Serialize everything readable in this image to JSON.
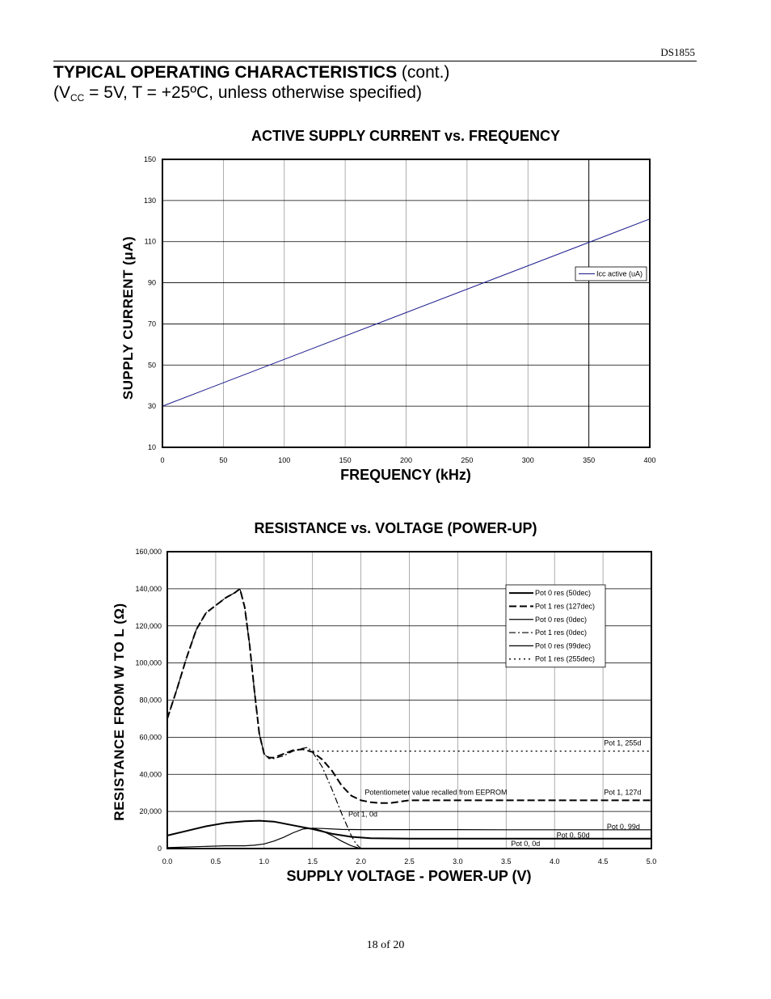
{
  "doc_id": "DS1855",
  "header": {
    "title_bold": "TYPICAL OPERATING CHARACTERISTICS",
    "title_suffix": " (cont.)",
    "condition_prefix": "(V",
    "condition_sub": "CC",
    "condition_suffix": " = 5V, T = +25ºC, unless otherwise specified)"
  },
  "footer": {
    "page": "18 of 20"
  },
  "chart_data": [
    {
      "type": "line",
      "title": "ACTIVE SUPPLY CURRENT vs. FREQUENCY",
      "xlabel": "FREQUENCY (kHz)",
      "ylabel_prefix": "SUPPLY CURRENT (",
      "ylabel_unit": "μA",
      "ylabel_suffix": ")",
      "xlim": [
        0,
        400
      ],
      "ylim": [
        10,
        150
      ],
      "xticks": [
        "0",
        "50",
        "100",
        "150",
        "200",
        "250",
        "300",
        "350",
        "400"
      ],
      "yticks": [
        "10",
        "30",
        "50",
        "70",
        "90",
        "110",
        "130",
        "150"
      ],
      "grid": true,
      "legend_position": "right",
      "series": [
        {
          "name": "Icc active (uA)",
          "color": "#1a1a8c",
          "style": "solid",
          "x": [
            0,
            400
          ],
          "y": [
            30,
            121
          ]
        }
      ]
    },
    {
      "type": "line",
      "title": "RESISTANCE vs. VOLTAGE (POWER-UP)",
      "xlabel": "SUPPLY VOLTAGE -  POWER-UP (V)",
      "ylabel_prefix": "RESISTANCE FROM W TO L (",
      "ylabel_unit": "Ω",
      "ylabel_suffix": ")",
      "xlim": [
        0,
        5
      ],
      "ylim": [
        0,
        160000
      ],
      "xticks": [
        "0.0",
        "0.5",
        "1.0",
        "1.5",
        "2.0",
        "2.5",
        "3.0",
        "3.5",
        "4.0",
        "4.5",
        "5.0"
      ],
      "yticks": [
        "0",
        "20,000",
        "40,000",
        "60,000",
        "80,000",
        "100,000",
        "120,000",
        "140,000",
        "160,000"
      ],
      "grid": true,
      "legend_position": "top-right",
      "series": [
        {
          "name": "Pot 0 res (50dec)",
          "style": "solid",
          "width": 2,
          "x": [
            0,
            0.2,
            0.4,
            0.6,
            0.8,
            0.95,
            1.1,
            1.3,
            1.5,
            1.7,
            1.9,
            2.1,
            2.5,
            3,
            3.5,
            4,
            4.5,
            5
          ],
          "y": [
            7000,
            9500,
            12000,
            13800,
            14700,
            15000,
            14500,
            12500,
            10500,
            8000,
            6300,
            5600,
            5300,
            5300,
            5300,
            5300,
            5300,
            5300
          ]
        },
        {
          "name": "Pot 1 res (127dec)",
          "style": "dash",
          "width": 2,
          "x": [
            0,
            0.1,
            0.2,
            0.3,
            0.4,
            0.5,
            0.6,
            0.7,
            0.75,
            0.8,
            0.85,
            0.9,
            0.95,
            1.0,
            1.05,
            1.1,
            1.2,
            1.3,
            1.4,
            1.5,
            1.6,
            1.7,
            1.8,
            1.9,
            2.0,
            2.1,
            2.2,
            2.3,
            2.5,
            3,
            3.5,
            4,
            4.5,
            5
          ],
          "y": [
            70000,
            86000,
            103000,
            118000,
            127000,
            131000,
            135000,
            138000,
            140000,
            130000,
            110000,
            85000,
            62000,
            51000,
            49000,
            49000,
            51000,
            53000,
            53500,
            52000,
            48000,
            42000,
            34000,
            28500,
            26000,
            25000,
            24500,
            24500,
            26000,
            26000,
            26000,
            26000,
            26000,
            26000
          ]
        },
        {
          "name": "Pot 0 res (0dec)",
          "style": "solid",
          "width": 1.2,
          "x": [
            0,
            0.3,
            0.6,
            0.8,
            0.9,
            1.0,
            1.1,
            1.2,
            1.3,
            1.4,
            1.5,
            1.6,
            1.7,
            1.8,
            1.9,
            1.98,
            2.0
          ],
          "y": [
            500,
            1000,
            1500,
            1500,
            1800,
            2500,
            4000,
            6000,
            8500,
            10500,
            11000,
            9500,
            7000,
            4000,
            1500,
            200,
            0
          ]
        },
        {
          "name": "Pot 1 res (0dec)",
          "style": "dashdot",
          "width": 1.2,
          "x": [
            0,
            0.1,
            0.2,
            0.3,
            0.4,
            0.5,
            0.6,
            0.7,
            0.75,
            0.8,
            0.85,
            0.9,
            0.95,
            1.0,
            1.05,
            1.1,
            1.2,
            1.3,
            1.4,
            1.45,
            1.5,
            1.6,
            1.7,
            1.8,
            1.9,
            1.95,
            2.0
          ],
          "y": [
            70000,
            86000,
            103000,
            118000,
            127000,
            131000,
            135000,
            138000,
            140000,
            130000,
            110000,
            85000,
            62000,
            51000,
            48500,
            48500,
            50000,
            52500,
            54000,
            54500,
            52000,
            44000,
            32000,
            19000,
            7000,
            2500,
            0
          ]
        },
        {
          "name": "Pot 0 res (99dec)",
          "style": "solid",
          "width": 1.2,
          "x": [
            1.5,
            1.6,
            1.8,
            2.0,
            2.5,
            3,
            3.5,
            4,
            4.5,
            5
          ],
          "y": [
            11000,
            10800,
            10300,
            10200,
            10200,
            10200,
            10100,
            10100,
            10100,
            10100
          ]
        },
        {
          "name": "Pot 1 res (255dec)",
          "style": "dot",
          "width": 1.4,
          "x": [
            1.5,
            1.6,
            2.0,
            2.5,
            3,
            3.5,
            4,
            4.5,
            5
          ],
          "y": [
            52500,
            52500,
            52500,
            52500,
            52500,
            52500,
            52500,
            52500,
            52500
          ]
        }
      ],
      "annotations": [
        {
          "text": "Pot 1, 255d",
          "x": 4.51,
          "y": 55500
        },
        {
          "text": "Potentiometer value recalled from EEPROM",
          "x": 2.04,
          "y": 29000
        },
        {
          "text": "Pot 1, 127d",
          "x": 4.51,
          "y": 29000
        },
        {
          "text": "Pot 1, 0d",
          "x": 1.87,
          "y": 17200
        },
        {
          "text": "Pot 0, 99d",
          "x": 4.54,
          "y": 10500
        },
        {
          "text": "Pot 0, 50d",
          "x": 4.02,
          "y": 5800
        },
        {
          "text": "Pot 0, 0d",
          "x": 3.55,
          "y": 1400
        }
      ]
    }
  ]
}
